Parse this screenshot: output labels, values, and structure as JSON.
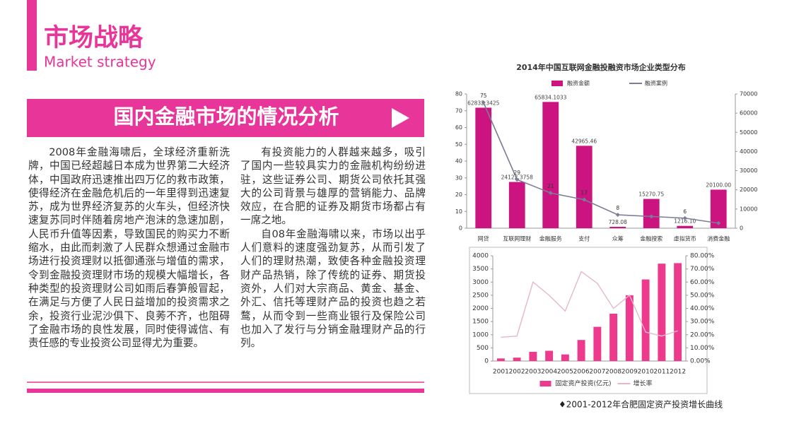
{
  "header": {
    "title": "市场战略",
    "subtitle": "Market strategy"
  },
  "banner": {
    "title": "国内金融市场的情况分析"
  },
  "columns": [
    {
      "paragraphs": [
        "2008年金融海啸后，全球经济重新洗牌，中国已经超越日本成为世界第二大经济体，中国政府迅速推出四万亿的救市政策，使得经济在金融危机后的一年里得到迅速复苏，成为世界经济复苏的火车头，但经济快速复苏同时伴随着房地产泡沫的急速加剧，人民币升值等因素，导致国民的购买力不断缩水，由此而刺激了人民群众想通过金融市场进行投资理财以抵御通涨与增值的需求，令到金融投资理财市场的规模大幅增长，各种类型的投资理财公司如雨后春笋般冒起，在满足与方便了人民日益增加的投资需求之余，投资行业泥沙俱下、良莠不齐，也阻碍了金融市场的良性发展，同时使得诚信、有责任感的专业投资公司显得尤为重要。"
      ]
    },
    {
      "paragraphs": [
        "有投资能力的人群越来越多，吸引了国内一些较具实力的金融机构纷纷进驻，这些证券公司、期货公司依托其强大的公司背景与雄厚的营销能力、品牌效应，在合肥的证券及期货市场都占有一席之地。",
        "自08年金融海啸以来，市场以出乎人们意料的速度强劲复苏，从而引发了人们的理财热潮，致使各种金融投资理财产品热销，除了传统的证券、期货投资外，人们对大宗商品、黄金、基金、外汇、信托等理财产品的投资也趋之若鹜，从而令到一些商业银行及保险公司也加入了发行与分销金融理财产品的行列。"
      ]
    }
  ],
  "chart_data": [
    {
      "type": "bar",
      "title": "2014年中国互联网金融投融资市场企业类型分布",
      "categories": [
        "网贷",
        "互联网理财",
        "金融服务",
        "支付",
        "众筹",
        "金融搜索",
        "虚拟货币",
        "消费金融"
      ],
      "series": [
        {
          "name": "融资金额",
          "type": "bar",
          "axis": "y2",
          "color": "#cc1480",
          "values": [
            62832.3425,
            24122.3758,
            65834.1033,
            42965.46,
            728.08,
            15270.75,
            1216.1,
            20100.0
          ],
          "value_labels": [
            "62832.3425",
            "24122.3758",
            "65834.1033",
            "42965.46",
            "728.08",
            "15270.75",
            "1216.10",
            "20100.00"
          ]
        },
        {
          "name": "融资案例",
          "type": "line",
          "color": "#7b7d98",
          "values": [
            75,
            29,
            21,
            17,
            8,
            7,
            6,
            3
          ],
          "value_labels": [
            "75",
            "29",
            "21",
            "17",
            "8",
            null,
            "6",
            null
          ]
        }
      ],
      "ylim": [
        0,
        80
      ],
      "yticks": [
        0,
        10,
        20,
        30,
        40,
        50,
        60,
        70,
        80
      ],
      "y2lim": [
        0,
        70000
      ],
      "y2ticks": [
        0,
        10000,
        20000,
        30000,
        40000,
        50000,
        60000,
        70000
      ],
      "grid": false
    },
    {
      "type": "bar",
      "caption": "♦2001-2012年合肥固定资产投资增长曲线",
      "categories": [
        "2001",
        "2002",
        "2003",
        "2004",
        "2005",
        "2006",
        "2007",
        "2008",
        "2009",
        "2010",
        "2011",
        "2012"
      ],
      "series": [
        {
          "name": "固定资产投资(亿元)",
          "type": "bar",
          "color": "#ee3a8c",
          "values": [
            100,
            130,
            350,
            390,
            250,
            800,
            1300,
            1800,
            2500,
            3100,
            3700,
            3720
          ]
        },
        {
          "name": "增长率",
          "type": "line",
          "axis": "y2",
          "color": "#e6b7cc",
          "values": [
            18,
            19,
            60,
            50,
            38,
            68,
            59,
            40,
            50,
            22,
            19,
            23
          ]
        }
      ],
      "ylim": [
        0,
        4000
      ],
      "yticks": [
        0,
        500,
        1000,
        1500,
        2000,
        2500,
        3000,
        3500,
        4000
      ],
      "y2lim": [
        0,
        80
      ],
      "y2ticks": [
        {
          "value": 0,
          "label": "0.00%"
        },
        {
          "value": 10,
          "label": "10.00%"
        },
        {
          "value": 20,
          "label": "20.00%"
        },
        {
          "value": 30,
          "label": "30.00%"
        },
        {
          "value": 40,
          "label": "40.00%"
        },
        {
          "value": 50,
          "label": "50.00%"
        },
        {
          "value": 60,
          "label": "60.00%"
        },
        {
          "value": 70,
          "label": "70.00%"
        },
        {
          "value": 80,
          "label": "80.00%"
        }
      ],
      "grid": false
    }
  ]
}
